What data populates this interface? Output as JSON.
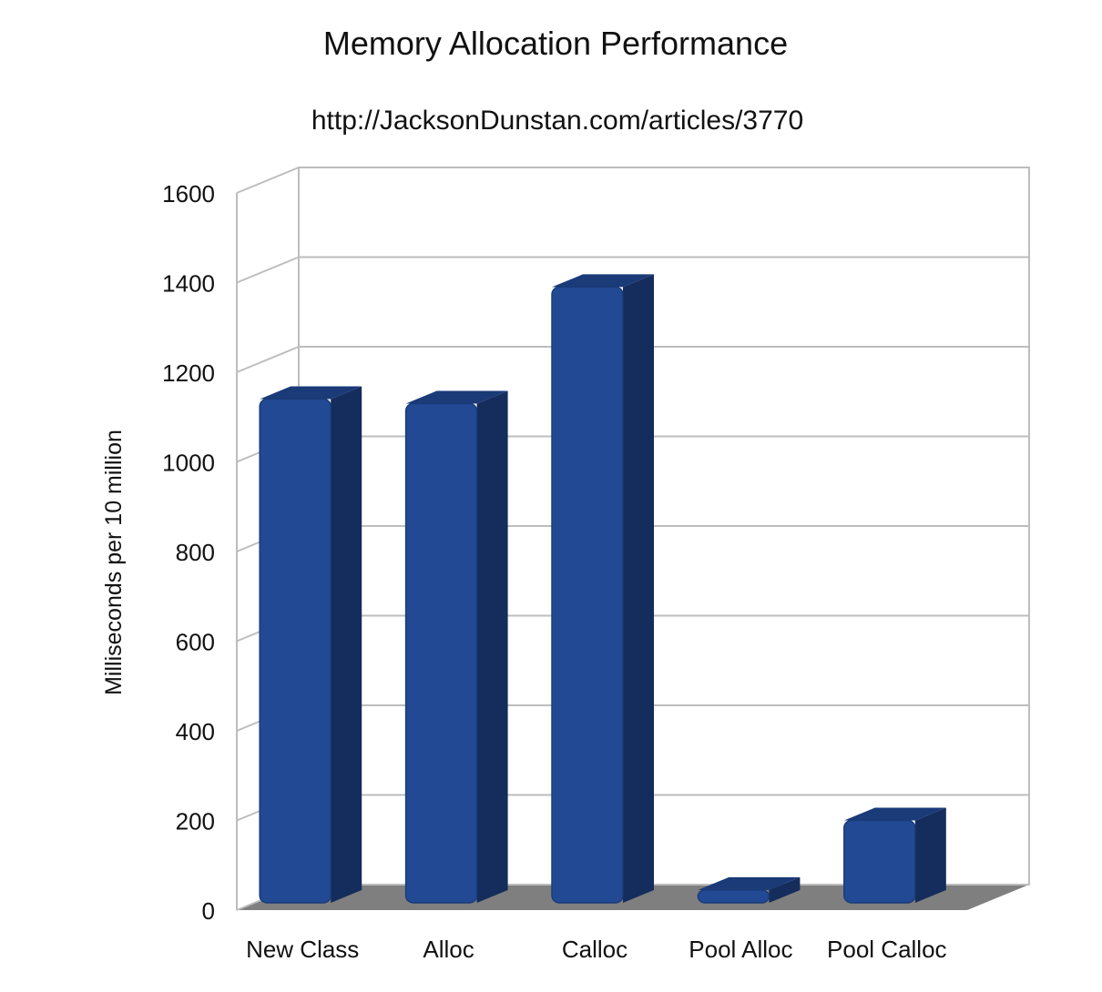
{
  "chart_data": {
    "type": "bar",
    "title": "Memory Allocation Performance",
    "subtitle": "http://JacksonDunstan.com/articles/3770",
    "xlabel": "",
    "ylabel": "Milliseconds per 10 million",
    "categories": [
      "New Class",
      "Alloc",
      "Calloc",
      "Pool Alloc",
      "Pool Calloc"
    ],
    "values": [
      1140,
      1130,
      1390,
      45,
      200
    ],
    "ylim": [
      0,
      1600
    ],
    "yticks": [
      0,
      200,
      400,
      600,
      800,
      1000,
      1200,
      1400,
      1600
    ],
    "grid": true,
    "legend": "none",
    "style": "3d",
    "colors": {
      "bar_front": "#224a94",
      "bar_side": "#142d5c",
      "bar_top": "#1a3a78",
      "floor": "#7f7f7f",
      "grid": "#bdbdbd"
    }
  }
}
